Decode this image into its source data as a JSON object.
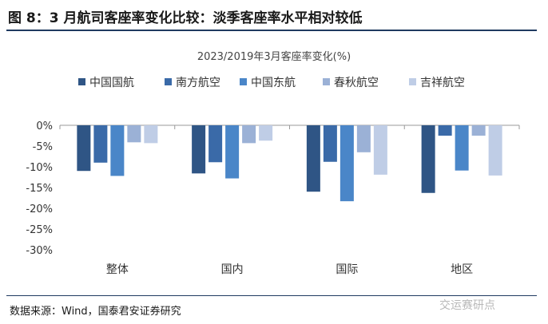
{
  "figure": {
    "title": "图 8：3 月航司客座率变化比较：淡季客座率水平相对较低",
    "source": "数据来源：Wind，国泰君安证券研究",
    "watermark": "交运赛研点"
  },
  "colors": {
    "rule": "#1f3a60",
    "series": [
      "#2f5585",
      "#3a6aa8",
      "#4a86c8",
      "#9bb1d6",
      "#bfcde6"
    ]
  },
  "chart_data": {
    "type": "bar",
    "title": "2023/2019年3月客座率变化(%)",
    "categories": [
      "整体",
      "国内",
      "国际",
      "地区"
    ],
    "series": [
      {
        "name": "中国国航",
        "values": [
          -11.0,
          -11.6,
          -16.0,
          -16.3
        ]
      },
      {
        "name": "南方航空",
        "values": [
          -9.0,
          -8.9,
          -8.8,
          -2.5
        ]
      },
      {
        "name": "中国东航",
        "values": [
          -12.2,
          -12.8,
          -18.3,
          -10.9
        ]
      },
      {
        "name": "春秋航空",
        "values": [
          -4.1,
          -4.3,
          -6.5,
          -2.5
        ]
      },
      {
        "name": "吉祥航空",
        "values": [
          -4.3,
          -3.7,
          -11.9,
          -12.1
        ]
      }
    ],
    "ylim": [
      -30,
      0
    ],
    "yticks": [
      "0%",
      "-5%",
      "-10%",
      "-15%",
      "-20%",
      "-25%",
      "-30%"
    ],
    "grid": false,
    "legend": "top"
  }
}
